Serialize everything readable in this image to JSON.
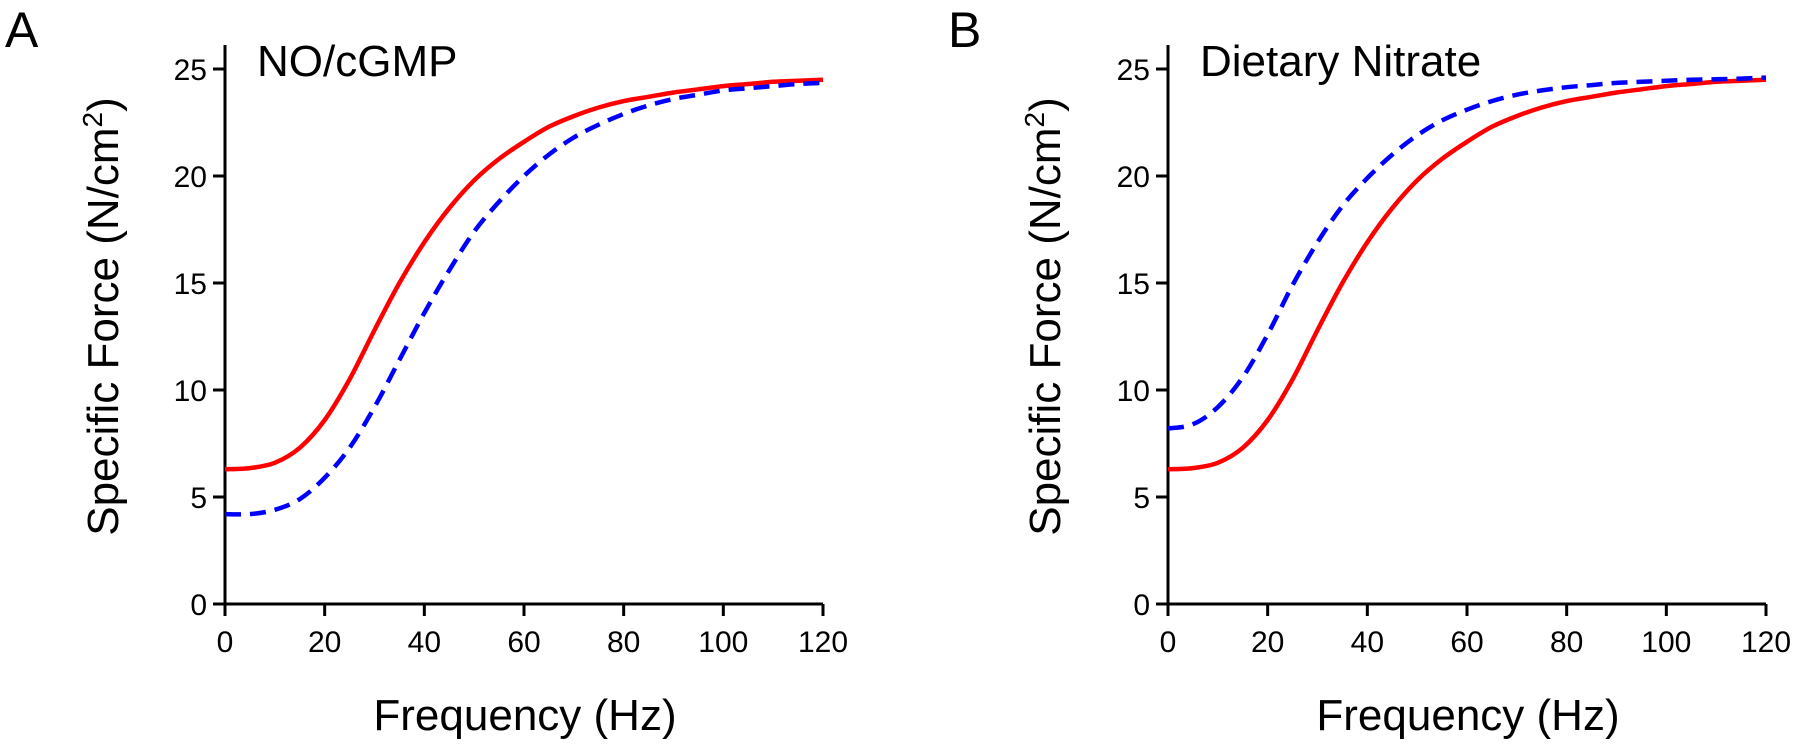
{
  "chart_data": [
    {
      "type": "line",
      "panel_label": "A",
      "title": "NO/cGMP",
      "xlabel": "Frequency (Hz)",
      "ylabel": {
        "main": "Specific Force (N/cm",
        "sup": "2",
        "close": ")"
      },
      "xlim": [
        0,
        120
      ],
      "ylim": [
        0,
        25
      ],
      "xticks": [
        "0",
        "20",
        "40",
        "60",
        "80",
        "100",
        "120"
      ],
      "yticks": [
        "0",
        "5",
        "10",
        "15",
        "20",
        "25"
      ],
      "grid": false,
      "series": [
        {
          "name": "red solid",
          "color": "#ff0000",
          "dash": "solid",
          "x": [
            0,
            5,
            10,
            15,
            20,
            25,
            30,
            35,
            40,
            45,
            50,
            55,
            60,
            65,
            70,
            75,
            80,
            85,
            90,
            95,
            100,
            105,
            110,
            115,
            120
          ],
          "y": [
            6.3,
            6.35,
            6.6,
            7.3,
            8.6,
            10.5,
            12.8,
            15.0,
            16.9,
            18.5,
            19.8,
            20.8,
            21.6,
            22.3,
            22.8,
            23.2,
            23.5,
            23.7,
            23.9,
            24.05,
            24.2,
            24.3,
            24.4,
            24.45,
            24.5
          ]
        },
        {
          "name": "blue dashed",
          "color": "#0000ff",
          "dash": "dashed",
          "x": [
            0,
            5,
            10,
            15,
            20,
            25,
            30,
            35,
            40,
            45,
            50,
            55,
            60,
            65,
            70,
            75,
            80,
            85,
            90,
            95,
            100,
            105,
            110,
            115,
            120
          ],
          "y": [
            4.2,
            4.2,
            4.4,
            4.9,
            5.9,
            7.3,
            9.2,
            11.4,
            13.6,
            15.6,
            17.4,
            18.8,
            20.0,
            21.0,
            21.8,
            22.4,
            22.9,
            23.3,
            23.6,
            23.8,
            24.0,
            24.1,
            24.2,
            24.3,
            24.35
          ]
        }
      ]
    },
    {
      "type": "line",
      "panel_label": "B",
      "title": "Dietary Nitrate",
      "xlabel": "Frequency (Hz)",
      "ylabel": {
        "main": "Specific Force (N/cm",
        "sup": "2",
        "close": ")"
      },
      "xlim": [
        0,
        120
      ],
      "ylim": [
        0,
        25
      ],
      "xticks": [
        "0",
        "20",
        "40",
        "60",
        "80",
        "100",
        "120"
      ],
      "yticks": [
        "0",
        "5",
        "10",
        "15",
        "20",
        "25"
      ],
      "grid": false,
      "series": [
        {
          "name": "red solid",
          "color": "#ff0000",
          "dash": "solid",
          "x": [
            0,
            5,
            10,
            15,
            20,
            25,
            30,
            35,
            40,
            45,
            50,
            55,
            60,
            65,
            70,
            75,
            80,
            85,
            90,
            95,
            100,
            105,
            110,
            115,
            120
          ],
          "y": [
            6.3,
            6.35,
            6.6,
            7.3,
            8.6,
            10.5,
            12.8,
            15.0,
            16.9,
            18.5,
            19.8,
            20.8,
            21.6,
            22.3,
            22.8,
            23.2,
            23.5,
            23.7,
            23.9,
            24.05,
            24.2,
            24.3,
            24.4,
            24.45,
            24.5
          ]
        },
        {
          "name": "blue dashed",
          "color": "#0000ff",
          "dash": "dashed",
          "x": [
            0,
            5,
            10,
            15,
            20,
            25,
            30,
            35,
            40,
            45,
            50,
            55,
            60,
            65,
            70,
            75,
            80,
            85,
            90,
            95,
            100,
            105,
            110,
            115,
            120
          ],
          "y": [
            8.2,
            8.4,
            9.2,
            10.6,
            12.6,
            14.9,
            16.9,
            18.6,
            19.9,
            21.0,
            21.9,
            22.6,
            23.1,
            23.5,
            23.8,
            24.0,
            24.15,
            24.25,
            24.35,
            24.4,
            24.45,
            24.5,
            24.52,
            24.55,
            24.6
          ]
        }
      ]
    }
  ]
}
